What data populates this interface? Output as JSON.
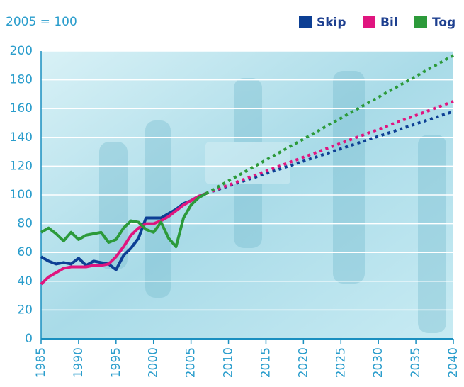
{
  "chart_data": {
    "type": "line",
    "y_label": "2005 = 100",
    "x": [
      1985,
      1986,
      1987,
      1988,
      1989,
      1990,
      1991,
      1992,
      1993,
      1994,
      1995,
      1996,
      1997,
      1998,
      1999,
      2000,
      2001,
      2002,
      2003,
      2004,
      2005,
      2006,
      2007
    ],
    "series": [
      {
        "name": "Skip",
        "color": "#0d3f94",
        "values": [
          57,
          54,
          52,
          53,
          52,
          56,
          51,
          54,
          53,
          52,
          48,
          58,
          63,
          70,
          84,
          84,
          84,
          87,
          90,
          94,
          96,
          99,
          101
        ],
        "forecast_x": [
          2007,
          2040
        ],
        "forecast_values": [
          101,
          158
        ]
      },
      {
        "name": "Bil",
        "color": "#e0157f",
        "values": [
          38,
          43,
          46,
          49,
          50,
          50,
          50,
          51,
          51,
          52,
          57,
          64,
          72,
          77,
          80,
          80,
          82,
          85,
          89,
          93,
          96,
          99,
          101
        ],
        "forecast_x": [
          2007,
          2040
        ],
        "forecast_values": [
          101,
          165
        ]
      },
      {
        "name": "Tog",
        "color": "#2c9a3a",
        "values": [
          74,
          77,
          73,
          68,
          74,
          69,
          72,
          73,
          74,
          67,
          69,
          77,
          82,
          81,
          76,
          74,
          81,
          70,
          64,
          84,
          93,
          98,
          101
        ],
        "forecast_x": [
          2007,
          2040
        ],
        "forecast_values": [
          101,
          197
        ]
      }
    ],
    "xlim": [
      1985,
      2040
    ],
    "ylim": [
      0,
      200
    ],
    "xticks": [
      1985,
      1990,
      1995,
      2000,
      2005,
      2010,
      2015,
      2020,
      2025,
      2030,
      2035,
      2040
    ],
    "yticks": [
      0,
      20,
      40,
      60,
      80,
      100,
      120,
      140,
      160,
      180,
      200
    ],
    "grid": true
  }
}
